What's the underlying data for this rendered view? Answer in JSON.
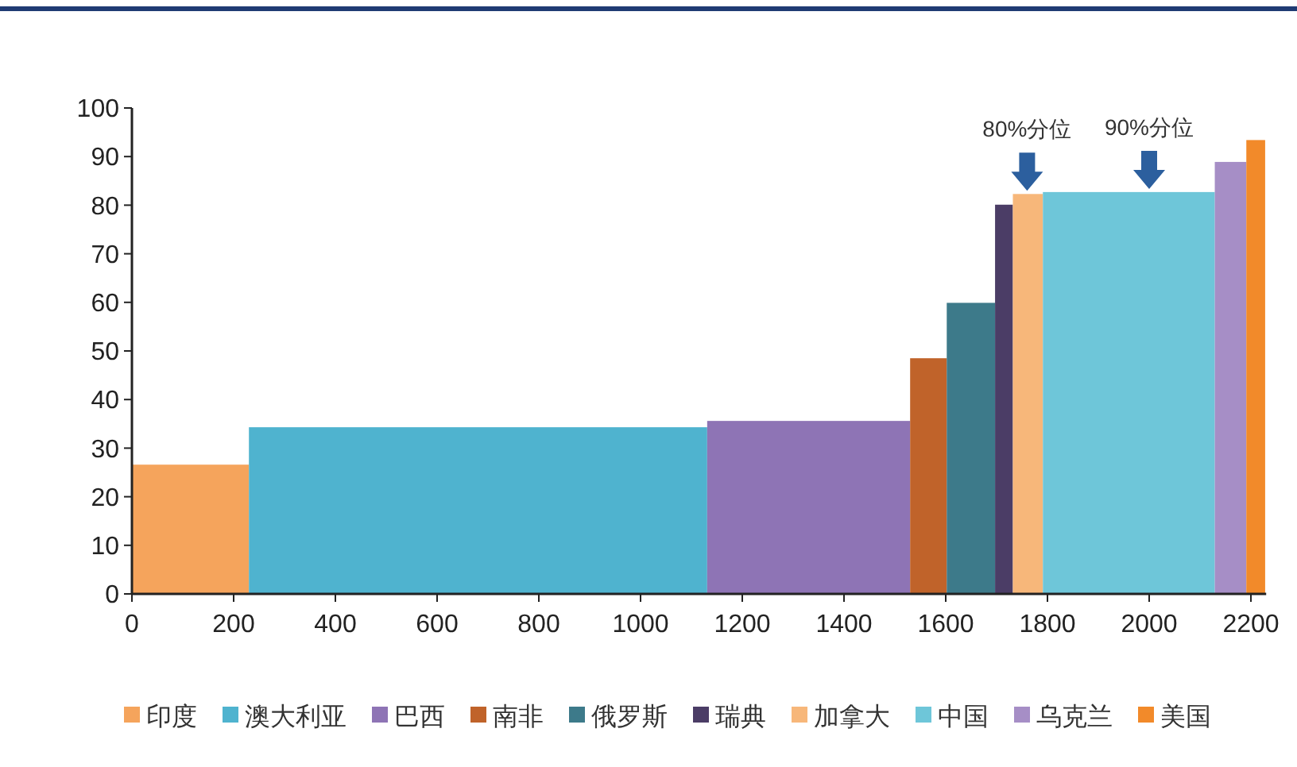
{
  "chart_data": {
    "type": "histogram",
    "xlim": [
      0,
      2230
    ],
    "xticks": [
      0,
      200,
      400,
      600,
      800,
      1000,
      1200,
      1400,
      1600,
      1800,
      2000,
      2200
    ],
    "ylim": [
      0,
      100
    ],
    "yticks": [
      0,
      10,
      20,
      30,
      40,
      50,
      60,
      70,
      80,
      90,
      100
    ],
    "grid": false,
    "legend": "bottom",
    "bins": [
      0,
      230,
      1131,
      1530,
      1602,
      1697,
      1732,
      1791,
      2129,
      2191,
      2228
    ],
    "series": [
      {
        "name": "印度",
        "color": "#f5a45c",
        "values": [
          26.6,
          null,
          null,
          null,
          null,
          null,
          null,
          null,
          null,
          null
        ]
      },
      {
        "name": "澳大利亚",
        "color": "#4fb3cf",
        "values": [
          null,
          34.3,
          null,
          null,
          null,
          null,
          null,
          null,
          null,
          null
        ]
      },
      {
        "name": "巴西",
        "color": "#8e74b5",
        "values": [
          null,
          null,
          35.6,
          null,
          null,
          null,
          null,
          null,
          null,
          null
        ]
      },
      {
        "name": "南非",
        "color": "#c0632a",
        "values": [
          null,
          null,
          null,
          48.5,
          null,
          null,
          null,
          null,
          null,
          null
        ]
      },
      {
        "name": "俄罗斯",
        "color": "#3d7a8a",
        "values": [
          null,
          null,
          null,
          null,
          59.9,
          null,
          null,
          null,
          null,
          null
        ]
      },
      {
        "name": "瑞典",
        "color": "#4b3d66",
        "values": [
          null,
          null,
          null,
          null,
          null,
          80.1,
          null,
          null,
          null,
          null
        ]
      },
      {
        "name": "加拿大",
        "color": "#f7b77a",
        "values": [
          null,
          null,
          null,
          null,
          null,
          null,
          82.3,
          null,
          null,
          null
        ]
      },
      {
        "name": "中国",
        "color": "#6ec6d9",
        "values": [
          null,
          null,
          null,
          null,
          null,
          null,
          null,
          82.7,
          null,
          null
        ]
      },
      {
        "name": "乌克兰",
        "color": "#a68ec6",
        "values": [
          null,
          null,
          null,
          null,
          null,
          null,
          null,
          null,
          88.9,
          null
        ]
      },
      {
        "name": "美国",
        "color": "#f28a2a",
        "values": [
          null,
          null,
          null,
          null,
          null,
          null,
          null,
          null,
          null,
          93.4
        ]
      }
    ],
    "annotations": [
      {
        "text": "80%分位",
        "x": 1760,
        "y": 82.3
      },
      {
        "text": "90%分位",
        "x": 2000,
        "y": 82.7
      }
    ]
  }
}
